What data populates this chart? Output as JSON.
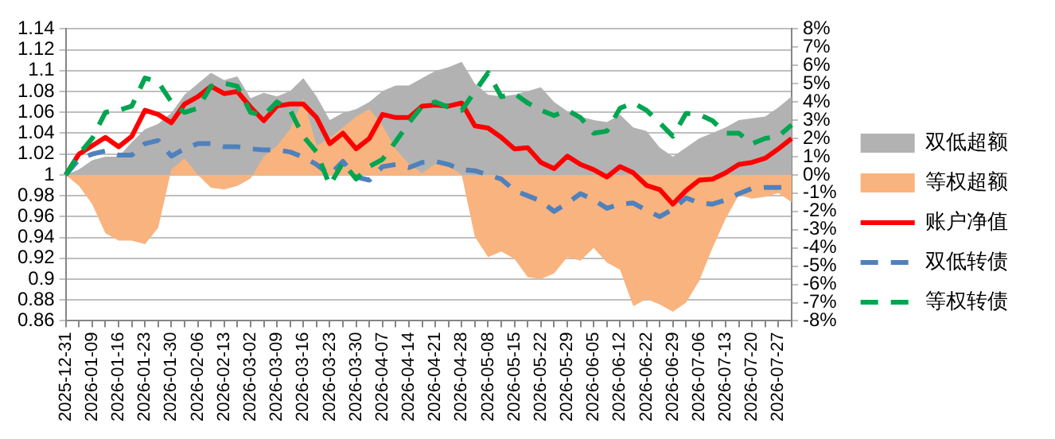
{
  "chart_data": {
    "type": "line",
    "categories": [
      "2025-12-31",
      null,
      "2026-01-09",
      null,
      "2026-01-16",
      null,
      "2026-01-23",
      null,
      "2026-01-30",
      null,
      "2026-02-06",
      null,
      "2026-02-13",
      null,
      "2026-03-02",
      null,
      "2026-03-09",
      null,
      "2026-03-16",
      null,
      "2026-03-23",
      null,
      "2026-03-30",
      null,
      "2026-04-07",
      null,
      "2026-04-14",
      null,
      "2026-04-21",
      null,
      "2026-04-28",
      null,
      "2026-05-08",
      null,
      "2026-05-15",
      null,
      "2026-05-22",
      null,
      "2026-05-29",
      null,
      "2026-06-05",
      null,
      "2026-06-12",
      null,
      "2026-06-22",
      null,
      "2026-06-29",
      null,
      "2026-07-06",
      null,
      "2026-07-13",
      null,
      "2026-07-20",
      null,
      "2026-07-27",
      null
    ],
    "series": [
      {
        "name": "双低超额",
        "type": "area",
        "axis": "y2",
        "color": "#b2b2b2",
        "values": [
          0,
          0.3,
          0.8,
          1.0,
          1.0,
          1.8,
          2.5,
          2.8,
          3.4,
          4.4,
          5.0,
          5.6,
          5.2,
          5.4,
          4.2,
          4.5,
          4.3,
          4.6,
          5.3,
          4.3,
          3.0,
          3.4,
          3.6,
          4.0,
          4.6,
          4.9,
          4.9,
          5.3,
          5.7,
          5.9,
          6.2,
          5.0,
          4.4,
          4.3,
          4.4,
          4.6,
          4.8,
          4.0,
          3.5,
          3.2,
          3.0,
          2.9,
          3.3,
          2.6,
          2.4,
          1.5,
          1.0,
          1.5,
          2.0,
          2.3,
          2.6,
          3.0,
          3.1,
          3.2,
          3.7,
          4.3
        ]
      },
      {
        "name": "等权超额",
        "type": "area",
        "axis": "y2",
        "color": "#f9b37e",
        "values": [
          0,
          -0.6,
          -1.6,
          -3.2,
          -3.6,
          -3.6,
          -3.8,
          -2.9,
          0.3,
          0.9,
          0,
          -0.7,
          -0.8,
          -0.6,
          -0.2,
          1.0,
          1.6,
          2.5,
          4.2,
          1.6,
          2.0,
          2.6,
          3.2,
          3.6,
          2.7,
          1.4,
          0.6,
          0.1,
          0.6,
          0.5,
          0,
          -3.4,
          -4.5,
          -4.2,
          -4.6,
          -5.6,
          -5.7,
          -5.4,
          -4.5,
          -4.7,
          -4.0,
          -4.8,
          -5.2,
          -7.2,
          -6.8,
          -7.1,
          -7.5,
          -7.0,
          -5.8,
          -4.0,
          -2.4,
          -1.1,
          -1.3,
          -1.2,
          -1.0,
          -1.5
        ]
      },
      {
        "name": "账户净值",
        "type": "line",
        "axis": "y",
        "line_style": "solid",
        "color": "#ff0000",
        "values": [
          1.0,
          1.02,
          1.028,
          1.036,
          1.027,
          1.037,
          1.062,
          1.058,
          1.05,
          1.068,
          1.075,
          1.085,
          1.078,
          1.08,
          1.065,
          1.052,
          1.066,
          1.068,
          1.068,
          1.055,
          1.03,
          1.04,
          1.025,
          1.035,
          1.058,
          1.055,
          1.055,
          1.066,
          1.067,
          1.066,
          1.069,
          1.047,
          1.045,
          1.036,
          1.025,
          1.026,
          1.012,
          1.006,
          1.018,
          1.01,
          1.005,
          0.998,
          1.008,
          1.002,
          0.99,
          0.986,
          0.972,
          0.985,
          0.995,
          0.996,
          1.002,
          1.01,
          1.012,
          1.016,
          1.025,
          1.035
        ]
      },
      {
        "name": "双低转债",
        "type": "line",
        "axis": "y",
        "line_style": "dashed",
        "color": "#4f81bd",
        "values": [
          1.0,
          1.015,
          1.02,
          1.023,
          1.019,
          1.019,
          1.03,
          1.033,
          1.018,
          1.025,
          1.03,
          1.03,
          1.027,
          1.027,
          1.025,
          1.024,
          1.024,
          1.022,
          1.017,
          1.01,
          1.0,
          1.013,
          0.998,
          0.995,
          1.008,
          1.01,
          1.007,
          1.012,
          1.013,
          1.01,
          1.005,
          1.004,
          1.0,
          0.996,
          0.985,
          0.98,
          0.975,
          0.965,
          0.973,
          0.982,
          0.976,
          0.968,
          0.972,
          0.973,
          0.966,
          0.96,
          0.967,
          0.978,
          0.973,
          0.972,
          0.976,
          0.982,
          0.987,
          0.988,
          0.988,
          0.989
        ]
      },
      {
        "name": "等权转债",
        "type": "line",
        "axis": "y",
        "line_style": "dashed",
        "color": "#00a550",
        "values": [
          1.0,
          1.02,
          1.035,
          1.06,
          1.062,
          1.066,
          1.093,
          1.089,
          1.07,
          1.06,
          1.064,
          1.085,
          1.088,
          1.085,
          1.06,
          1.057,
          1.07,
          1.062,
          1.037,
          1.022,
          0.99,
          1.012,
          0.996,
          1.008,
          1.015,
          1.032,
          1.05,
          1.066,
          1.07,
          1.065,
          1.062,
          1.08,
          1.098,
          1.075,
          1.078,
          1.069,
          1.062,
          1.057,
          1.062,
          1.055,
          1.04,
          1.042,
          1.064,
          1.069,
          1.062,
          1.05,
          1.037,
          1.059,
          1.058,
          1.052,
          1.04,
          1.04,
          1.03,
          1.035,
          1.037,
          1.048
        ]
      }
    ],
    "ylim": [
      0.86,
      1.14
    ],
    "yticks": [
      0.86,
      0.88,
      0.9,
      0.92,
      0.94,
      0.96,
      0.98,
      1,
      1.02,
      1.04,
      1.06,
      1.08,
      1.1,
      1.12,
      1.14
    ],
    "y2lim": [
      -8,
      8
    ],
    "y2ticks": [
      {
        "value": -8,
        "label": "-8%"
      },
      {
        "value": -7,
        "label": "-7%"
      },
      {
        "value": -6,
        "label": "-6%"
      },
      {
        "value": -5,
        "label": "-5%"
      },
      {
        "value": -4,
        "label": "-4%"
      },
      {
        "value": -3,
        "label": "-3%"
      },
      {
        "value": -2,
        "label": "-2%"
      },
      {
        "value": -1,
        "label": "-1%"
      },
      {
        "value": 0,
        "label": "0%"
      },
      {
        "value": 1,
        "label": "1%"
      },
      {
        "value": 2,
        "label": "2%"
      },
      {
        "value": 3,
        "label": "3%"
      },
      {
        "value": 4,
        "label": "4%"
      },
      {
        "value": 5,
        "label": "5%"
      },
      {
        "value": 6,
        "label": "6%"
      },
      {
        "value": 7,
        "label": "7%"
      },
      {
        "value": 8,
        "label": "8%"
      }
    ],
    "grid": "y",
    "legend": "right",
    "marker": "none"
  }
}
